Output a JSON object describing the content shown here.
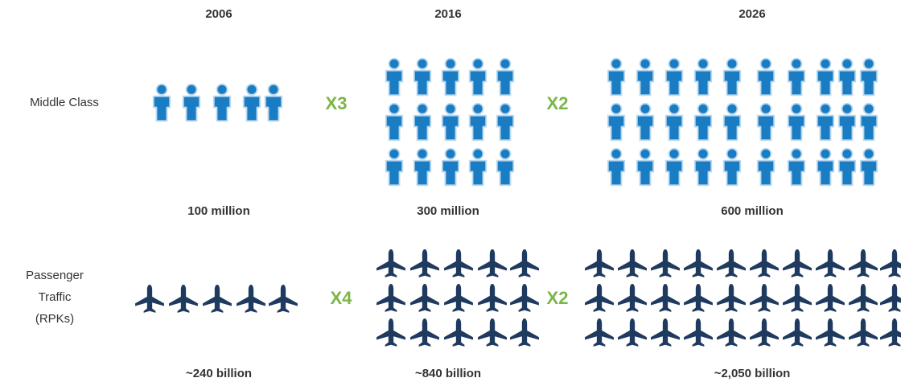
{
  "columns": [
    "2006",
    "2016",
    "2026"
  ],
  "rows": [
    {
      "label": [
        "Middle Class"
      ],
      "values": [
        "100 million",
        "300 million",
        "600 million"
      ],
      "multipliers": [
        "X3",
        "X2"
      ]
    },
    {
      "label": [
        "Passenger",
        "Traffic",
        "(RPKs)"
      ],
      "values": [
        "~240 billion",
        "~840 billion",
        "~2,050 billion"
      ],
      "multipliers": [
        "X4",
        "X2"
      ]
    }
  ]
}
